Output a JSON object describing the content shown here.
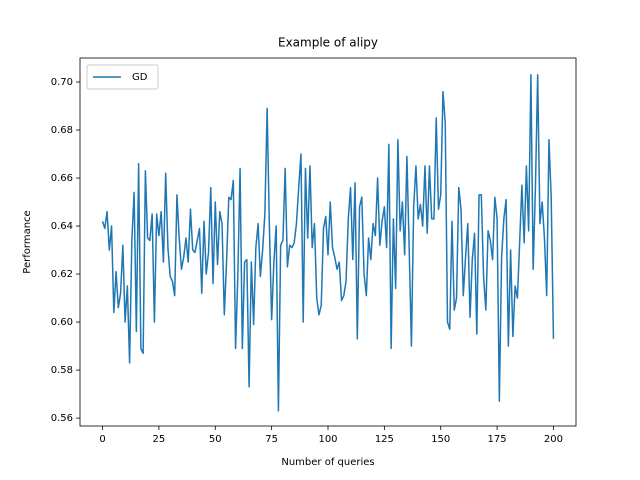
{
  "chart_data": {
    "type": "line",
    "title": "Example of alipy",
    "xlabel": "Number of queries",
    "ylabel": "Performance",
    "x": [
      0,
      1,
      2,
      3,
      4,
      5,
      6,
      7,
      8,
      9,
      10,
      11,
      12,
      13,
      14,
      15,
      16,
      17,
      18,
      19,
      20,
      21,
      22,
      23,
      24,
      25,
      26,
      27,
      28,
      29,
      30,
      31,
      32,
      33,
      34,
      35,
      36,
      37,
      38,
      39,
      40,
      41,
      42,
      43,
      44,
      45,
      46,
      47,
      48,
      49,
      50,
      51,
      52,
      53,
      54,
      55,
      56,
      57,
      58,
      59,
      60,
      61,
      62,
      63,
      64,
      65,
      66,
      67,
      68,
      69,
      70,
      71,
      72,
      73,
      74,
      75,
      76,
      77,
      78,
      79,
      80,
      81,
      82,
      83,
      84,
      85,
      86,
      87,
      88,
      89,
      90,
      91,
      92,
      93,
      94,
      95,
      96,
      97,
      98,
      99,
      100,
      101,
      102,
      103,
      104,
      105,
      106,
      107,
      108,
      109,
      110,
      111,
      112,
      113,
      114,
      115,
      116,
      117,
      118,
      119,
      120,
      121,
      122,
      123,
      124,
      125,
      126,
      127,
      128,
      129,
      130,
      131,
      132,
      133,
      134,
      135,
      136,
      137,
      138,
      139,
      140,
      141,
      142,
      143,
      144,
      145,
      146,
      147,
      148,
      149,
      150,
      151,
      152,
      153,
      154,
      155,
      156,
      157,
      158,
      159,
      160,
      161,
      162,
      163,
      164,
      165,
      166,
      167,
      168,
      169,
      170,
      171,
      172,
      173,
      174,
      175,
      176,
      177,
      178,
      179,
      180,
      181,
      182,
      183,
      184,
      185,
      186,
      187,
      188,
      189,
      190,
      191,
      192,
      193,
      194,
      195,
      196,
      197,
      198,
      199,
      200
    ],
    "series": [
      {
        "name": "GD",
        "color": "#1f77b4",
        "values": [
          0.642,
          0.639,
          0.646,
          0.63,
          0.64,
          0.604,
          0.621,
          0.606,
          0.612,
          0.632,
          0.6,
          0.615,
          0.583,
          0.634,
          0.654,
          0.596,
          0.666,
          0.589,
          0.587,
          0.663,
          0.635,
          0.634,
          0.645,
          0.6,
          0.645,
          0.636,
          0.646,
          0.625,
          0.662,
          0.631,
          0.619,
          0.617,
          0.611,
          0.653,
          0.635,
          0.622,
          0.627,
          0.635,
          0.625,
          0.647,
          0.63,
          0.629,
          0.634,
          0.639,
          0.612,
          0.642,
          0.62,
          0.629,
          0.656,
          0.616,
          0.65,
          0.624,
          0.646,
          0.641,
          0.603,
          0.625,
          0.652,
          0.651,
          0.659,
          0.589,
          0.619,
          0.664,
          0.589,
          0.625,
          0.626,
          0.573,
          0.625,
          0.599,
          0.631,
          0.641,
          0.619,
          0.63,
          0.645,
          0.689,
          0.64,
          0.601,
          0.625,
          0.64,
          0.563,
          0.632,
          0.634,
          0.664,
          0.623,
          0.632,
          0.631,
          0.633,
          0.641,
          0.656,
          0.67,
          0.6,
          0.664,
          0.635,
          0.665,
          0.631,
          0.641,
          0.61,
          0.603,
          0.607,
          0.639,
          0.644,
          0.628,
          0.65,
          0.631,
          0.627,
          0.622,
          0.625,
          0.609,
          0.611,
          0.617,
          0.643,
          0.656,
          0.626,
          0.658,
          0.593,
          0.648,
          0.652,
          0.62,
          0.611,
          0.635,
          0.626,
          0.641,
          0.636,
          0.66,
          0.632,
          0.642,
          0.648,
          0.631,
          0.674,
          0.589,
          0.643,
          0.614,
          0.676,
          0.638,
          0.65,
          0.628,
          0.669,
          0.631,
          0.59,
          0.648,
          0.665,
          0.643,
          0.649,
          0.64,
          0.665,
          0.637,
          0.665,
          0.643,
          0.643,
          0.685,
          0.647,
          0.653,
          0.696,
          0.683,
          0.6,
          0.597,
          0.642,
          0.605,
          0.61,
          0.656,
          0.647,
          0.611,
          0.627,
          0.641,
          0.602,
          0.626,
          0.637,
          0.595,
          0.653,
          0.653,
          0.619,
          0.605,
          0.638,
          0.634,
          0.626,
          0.652,
          0.643,
          0.567,
          0.627,
          0.643,
          0.651,
          0.59,
          0.63,
          0.594,
          0.615,
          0.61,
          0.633,
          0.657,
          0.633,
          0.665,
          0.638,
          0.703,
          0.622,
          0.656,
          0.703,
          0.641,
          0.65,
          0.635,
          0.611,
          0.676,
          0.652,
          0.593
        ]
      }
    ],
    "xlim": [
      -10,
      210
    ],
    "xticks": [
      0,
      25,
      50,
      75,
      100,
      125,
      150,
      175,
      200
    ],
    "ylim": [
      0.5567,
      0.71
    ],
    "yticks": [
      0.56,
      0.58,
      {
        "value": 0.6,
        "label": "0.60"
      },
      0.62,
      0.64,
      0.66,
      0.68,
      {
        "value": 0.7,
        "label": "0.70"
      }
    ],
    "legend": "upper left",
    "grid": false
  }
}
